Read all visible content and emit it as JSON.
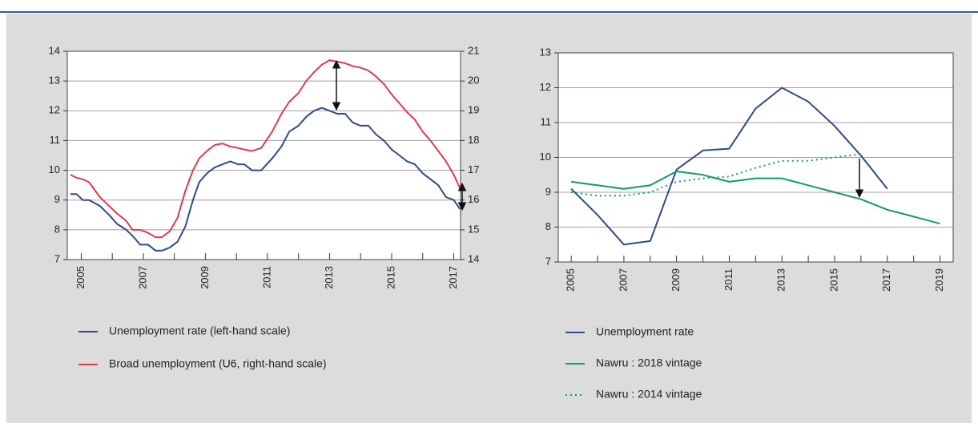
{
  "chart_data": [
    {
      "type": "line",
      "grid": true,
      "legend": "bottom",
      "xlim": [
        2004.55,
        2017.22
      ],
      "xticks": [
        2005,
        2007,
        2009,
        2011,
        2013,
        2015,
        2017
      ],
      "xminor": [
        2006,
        2008,
        2010,
        2012,
        2014,
        2016
      ],
      "ylim": [
        7,
        14
      ],
      "yticks": [
        7,
        8,
        9,
        10,
        11,
        12,
        13,
        14
      ],
      "y2lim": [
        14,
        21
      ],
      "y2ticks": [
        14,
        15,
        16,
        17,
        18,
        19,
        20,
        21
      ],
      "x": [
        2004.65,
        2004.85,
        2005.05,
        2005.25,
        2005.6,
        2005.9,
        2006.15,
        2006.45,
        2006.65,
        2006.9,
        2007.15,
        2007.4,
        2007.6,
        2007.85,
        2008.1,
        2008.35,
        2008.6,
        2008.8,
        2009.05,
        2009.3,
        2009.55,
        2009.8,
        2010.05,
        2010.25,
        2010.5,
        2010.8,
        2011.15,
        2011.45,
        2011.7,
        2012.0,
        2012.25,
        2012.5,
        2012.75,
        2013.0,
        2013.25,
        2013.5,
        2013.75,
        2014.0,
        2014.25,
        2014.5,
        2014.75,
        2015.0,
        2015.25,
        2015.5,
        2015.75,
        2016.0,
        2016.25,
        2016.5,
        2016.75,
        2017.0,
        2017.2
      ],
      "series": [
        {
          "name": "Unemployment rate (left-hand scale)",
          "color": "#2e4a8a",
          "values": [
            9.2,
            9.2,
            9.0,
            9.0,
            8.8,
            8.5,
            8.2,
            8.0,
            7.8,
            7.5,
            7.5,
            7.3,
            7.3,
            7.4,
            7.6,
            8.1,
            9.0,
            9.6,
            9.9,
            10.1,
            10.2,
            10.3,
            10.2,
            10.2,
            10.0,
            10.0,
            10.4,
            10.8,
            11.3,
            11.5,
            11.8,
            12.0,
            12.1,
            12.0,
            11.9,
            11.9,
            11.6,
            11.5,
            11.5,
            11.2,
            11.0,
            10.7,
            10.5,
            10.3,
            10.2,
            9.9,
            9.7,
            9.5,
            9.1,
            9.0,
            8.7
          ]
        },
        {
          "name": "Broad unemployment (U6, right-hand scale)",
          "color": "#e03a4f",
          "axis": "y2",
          "values": [
            16.85,
            16.75,
            16.7,
            16.6,
            16.1,
            15.8,
            15.55,
            15.3,
            15.0,
            15.0,
            14.9,
            14.75,
            14.75,
            14.95,
            15.4,
            16.3,
            17.0,
            17.4,
            17.65,
            17.85,
            17.9,
            17.8,
            17.75,
            17.7,
            17.65,
            17.75,
            18.3,
            18.9,
            19.3,
            19.6,
            20.0,
            20.3,
            20.55,
            20.7,
            20.65,
            20.6,
            20.5,
            20.45,
            20.35,
            20.15,
            19.9,
            19.55,
            19.25,
            18.95,
            18.7,
            18.3,
            18.0,
            17.65,
            17.3,
            16.85,
            16.4
          ]
        }
      ]
    },
    {
      "type": "line",
      "grid": true,
      "legend": "bottom",
      "xlim": [
        2004.51,
        2019.5
      ],
      "xticks": [
        2005,
        2007,
        2009,
        2011,
        2013,
        2015,
        2017,
        2019
      ],
      "xminor": [
        2006,
        2008,
        2010,
        2012,
        2014,
        2016,
        2018
      ],
      "ylim": [
        7,
        13
      ],
      "yticks": [
        7,
        8,
        9,
        10,
        11,
        12,
        13
      ],
      "x": [
        2005,
        2006,
        2007,
        2008,
        2009,
        2010,
        2011,
        2012,
        2013,
        2014,
        2015,
        2016,
        2017,
        2018,
        2019
      ],
      "series": [
        {
          "name": "Unemployment rate",
          "color": "#2e4a8a",
          "style": "solid",
          "values": [
            9.1,
            8.35,
            7.5,
            7.6,
            9.65,
            10.2,
            10.25,
            11.4,
            12.0,
            11.6,
            10.9,
            10.05,
            9.1,
            null,
            null
          ]
        },
        {
          "name": "Nawru : 2018 vintage",
          "color": "#109a70",
          "style": "solid",
          "values": [
            9.3,
            9.2,
            9.1,
            9.2,
            9.6,
            9.5,
            9.3,
            9.4,
            9.4,
            9.2,
            9.0,
            8.8,
            8.5,
            8.3,
            8.1
          ]
        },
        {
          "name": "Nawru : 2014 vintage",
          "color": "#109a70",
          "style": "dotted",
          "values": [
            9.0,
            8.9,
            8.9,
            9.0,
            9.3,
            9.4,
            9.45,
            9.7,
            9.9,
            9.9,
            10.0,
            10.1,
            null,
            null,
            null
          ]
        }
      ]
    }
  ]
}
